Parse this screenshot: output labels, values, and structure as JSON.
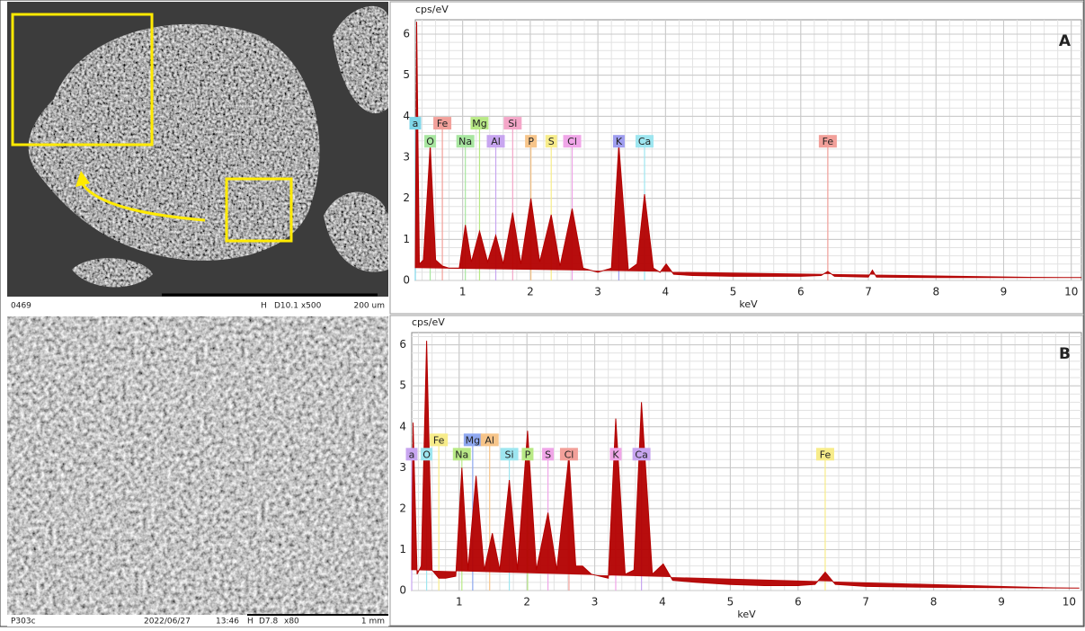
{
  "chart_data": [
    {
      "type": "area",
      "label": "A",
      "y_label": "cps/eV",
      "x_label": "keV",
      "color": "#b30000",
      "grid": true,
      "xlim": [
        0.3,
        10.15
      ],
      "ylim": [
        0,
        6.35
      ],
      "xticks": [
        1,
        2,
        3,
        4,
        5,
        6,
        7,
        8,
        9,
        10
      ],
      "yticks": [
        0,
        1,
        2,
        3,
        4,
        5,
        6
      ],
      "x": [
        0.3,
        0.32,
        0.36,
        0.42,
        0.52,
        0.6,
        0.7,
        0.8,
        0.95,
        1.04,
        1.13,
        1.25,
        1.37,
        1.49,
        1.6,
        1.74,
        1.86,
        2.01,
        2.14,
        2.31,
        2.44,
        2.62,
        2.78,
        3.0,
        3.2,
        3.31,
        3.45,
        3.58,
        3.69,
        3.82,
        3.92,
        4.01,
        4.12,
        4.4,
        5,
        5.5,
        6,
        6.3,
        6.4,
        6.5,
        7,
        7.06,
        7.12,
        8,
        9,
        10.15
      ],
      "values": [
        0.3,
        6.3,
        0.4,
        0.5,
        3.3,
        0.5,
        0.35,
        0.3,
        0.3,
        1.35,
        0.45,
        1.2,
        0.45,
        1.1,
        0.4,
        1.65,
        0.4,
        2.0,
        0.45,
        1.6,
        0.35,
        1.75,
        0.3,
        0.2,
        0.3,
        3.3,
        0.25,
        0.4,
        2.1,
        0.3,
        0.2,
        0.4,
        0.15,
        0.12,
        0.1,
        0.1,
        0.1,
        0.12,
        0.22,
        0.1,
        0.08,
        0.25,
        0.08,
        0.07,
        0.07,
        0.07
      ],
      "annotations": [
        {
          "text": "a",
          "x": 0.3,
          "y": 3.83,
          "color": "#7fd6e8"
        },
        {
          "text": "Fe",
          "x": 0.7,
          "y": 3.83,
          "color": "#f2a09a"
        },
        {
          "text": "Mg",
          "x": 1.25,
          "y": 3.83,
          "color": "#b8e986"
        },
        {
          "text": "Si",
          "x": 1.74,
          "y": 3.83,
          "color": "#f4a6c8"
        },
        {
          "text": "O",
          "x": 0.52,
          "y": 3.39,
          "color": "#a8e6a0"
        },
        {
          "text": "Na",
          "x": 1.04,
          "y": 3.39,
          "color": "#a8e6a0"
        },
        {
          "text": "Al",
          "x": 1.49,
          "y": 3.39,
          "color": "#c8a6f0"
        },
        {
          "text": "P",
          "x": 2.01,
          "y": 3.39,
          "color": "#f7c58a"
        },
        {
          "text": "S",
          "x": 2.31,
          "y": 3.39,
          "color": "#f7ec8a"
        },
        {
          "text": "Cl",
          "x": 2.62,
          "y": 3.39,
          "color": "#f0a6e8"
        },
        {
          "text": "K",
          "x": 3.31,
          "y": 3.39,
          "color": "#9f9ef0"
        },
        {
          "text": "Ca",
          "x": 3.69,
          "y": 3.39,
          "color": "#9ee6f0"
        },
        {
          "text": "Fe",
          "x": 6.4,
          "y": 3.39,
          "color": "#f2a09a"
        }
      ]
    },
    {
      "type": "area",
      "label": "B",
      "y_label": "cps/eV",
      "x_label": "keV",
      "color": "#b30000",
      "grid": true,
      "xlim": [
        0.3,
        10.18
      ],
      "ylim": [
        0,
        6.3
      ],
      "xticks": [
        1,
        2,
        3,
        4,
        5,
        6,
        7,
        8,
        9,
        10
      ],
      "yticks": [
        0,
        1,
        2,
        3,
        4,
        5,
        6
      ],
      "x": [
        0.3,
        0.32,
        0.38,
        0.44,
        0.52,
        0.6,
        0.7,
        0.8,
        0.95,
        1.04,
        1.13,
        1.25,
        1.37,
        1.49,
        1.6,
        1.74,
        1.86,
        2.01,
        2.14,
        2.31,
        2.44,
        2.62,
        2.72,
        2.82,
        2.95,
        3.2,
        3.31,
        3.45,
        3.58,
        3.69,
        3.85,
        4.01,
        4.15,
        4.5,
        5,
        5.5,
        6,
        6.25,
        6.4,
        6.55,
        7,
        8,
        9,
        10.15
      ],
      "values": [
        0.5,
        4.1,
        0.4,
        0.6,
        6.1,
        0.5,
        0.3,
        0.3,
        0.35,
        3.0,
        0.5,
        2.8,
        0.5,
        1.4,
        0.5,
        2.7,
        0.5,
        3.9,
        0.5,
        1.9,
        0.5,
        3.3,
        0.6,
        0.6,
        0.4,
        0.3,
        4.2,
        0.4,
        0.5,
        4.6,
        0.4,
        0.65,
        0.25,
        0.2,
        0.15,
        0.12,
        0.12,
        0.15,
        0.45,
        0.15,
        0.1,
        0.08,
        0.07,
        0.06
      ],
      "annotations": [
        {
          "text": "Fe",
          "x": 0.7,
          "y": 3.68,
          "color": "#f7ec8a"
        },
        {
          "text": "Mg",
          "x": 1.2,
          "y": 3.68,
          "color": "#8fa8f0"
        },
        {
          "text": "Al",
          "x": 1.45,
          "y": 3.68,
          "color": "#f7c58a"
        },
        {
          "text": "a",
          "x": 0.3,
          "y": 3.33,
          "color": "#c8a6f0"
        },
        {
          "text": "O",
          "x": 0.52,
          "y": 3.33,
          "color": "#9ee6f0"
        },
        {
          "text": "Na",
          "x": 1.04,
          "y": 3.33,
          "color": "#b8e986"
        },
        {
          "text": "Si",
          "x": 1.74,
          "y": 3.33,
          "color": "#9ee6f0"
        },
        {
          "text": "P",
          "x": 2.01,
          "y": 3.33,
          "color": "#b8e986"
        },
        {
          "text": "S",
          "x": 2.31,
          "y": 3.33,
          "color": "#f0a6e8"
        },
        {
          "text": "Cl",
          "x": 2.62,
          "y": 3.33,
          "color": "#f2a09a"
        },
        {
          "text": "K",
          "x": 3.31,
          "y": 3.33,
          "color": "#f0a6e8"
        },
        {
          "text": "Ca",
          "x": 3.69,
          "y": 3.33,
          "color": "#c8a6f0"
        },
        {
          "text": "Fe",
          "x": 6.4,
          "y": 3.33,
          "color": "#f7ec8a"
        }
      ]
    }
  ],
  "images": [
    {
      "info": [
        "0469",
        "H",
        "D10.1 x500",
        "200 um"
      ]
    },
    {
      "info": [
        "P303c",
        "2022/06/27",
        "13:46",
        "H",
        "D7.8",
        "x80",
        "1 mm"
      ]
    }
  ]
}
